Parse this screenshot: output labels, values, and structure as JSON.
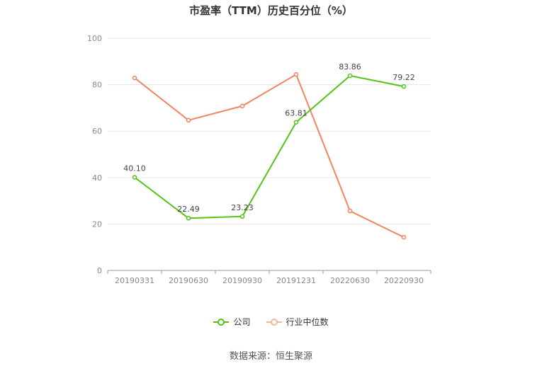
{
  "chart_data": {
    "type": "line",
    "title": "市盈率（TTM）历史百分位（%）",
    "categories": [
      "20190331",
      "20190630",
      "20190930",
      "20191231",
      "20220630",
      "20220930"
    ],
    "ylim": [
      0,
      100
    ],
    "yticks": [
      "0",
      "20",
      "40",
      "60",
      "80",
      "100"
    ],
    "grid": true,
    "legend_position": "bottom",
    "series": [
      {
        "name": "公司",
        "color": "#52c41a",
        "values": [
          40.1,
          22.49,
          23.23,
          63.81,
          83.86,
          79.22
        ],
        "labels": [
          "40.10",
          "22.49",
          "23.23",
          "63.81",
          "83.86",
          "79.22"
        ]
      },
      {
        "name": "行业中位数",
        "color": "#f4845f",
        "values": [
          82.9,
          64.7,
          70.8,
          84.4,
          25.6,
          14.3
        ]
      }
    ]
  },
  "source": "数据来源：恒生聚源"
}
